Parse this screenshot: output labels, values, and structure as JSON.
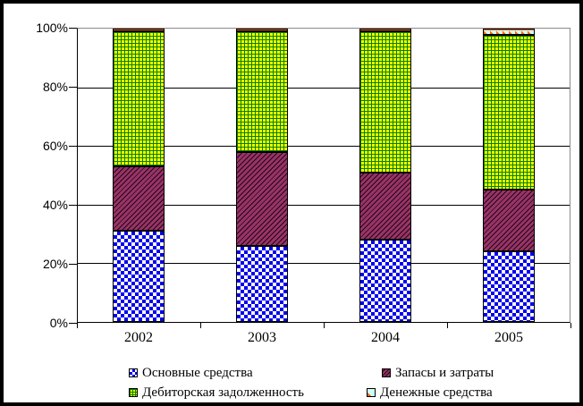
{
  "chart_data": {
    "type": "bar",
    "variant": "100-percent-stacked-column",
    "title": "",
    "xlabel": "",
    "ylabel": "",
    "categories": [
      "2002",
      "2003",
      "2004",
      "2005"
    ],
    "series": [
      {
        "name": "Основные средства",
        "pattern": "blue-check",
        "values": [
          31,
          26,
          28,
          24
        ]
      },
      {
        "name": "Запасы и затраты",
        "pattern": "maroon-diag",
        "values": [
          22,
          32,
          23,
          21
        ]
      },
      {
        "name": "Дебиторская задолженность",
        "pattern": "green-grid",
        "values": [
          46,
          41,
          48,
          53
        ]
      },
      {
        "name": "Денежные средства",
        "pattern": "cash-dots",
        "values": [
          1,
          1,
          1,
          2
        ]
      }
    ],
    "yticks": [
      0,
      20,
      40,
      60,
      80,
      100
    ],
    "ytick_labels": [
      "0%",
      "20%",
      "40%",
      "60%",
      "80%",
      "100%"
    ],
    "ylim": [
      0,
      100
    ],
    "grid": true,
    "legend_position": "bottom"
  },
  "colors": {
    "series_blue": "#0000EE",
    "series_plum": "#993366",
    "series_yellow": "#FFFF00",
    "series_grid_green": "#008000",
    "series_cash_bg": "#CCFFFF",
    "series_cash_orange": "#FF6600",
    "plot_frame_gray": "#8A8A8A",
    "axis_black": "#000000",
    "background": "#FFFFFF"
  }
}
